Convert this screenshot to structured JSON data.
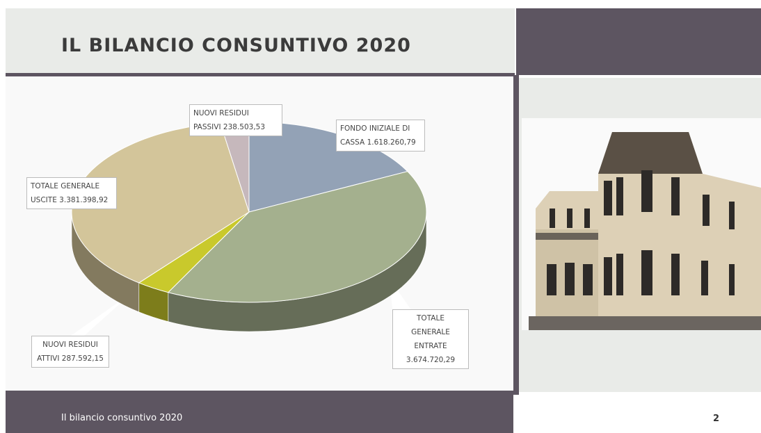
{
  "slide": {
    "title": "IL BILANCIO CONSUNTIVO 2020",
    "footer": "Il bilancio consuntivo 2020",
    "page_number": "2"
  },
  "chart_data": {
    "type": "pie",
    "categories": [
      "FONDO INIZIALE DI CASSA",
      "TOTALE GENERALE ENTRATE",
      "NUOVI RESIDUI ATTIVI",
      "TOTALE GENERALE USCITE",
      "NUOVI RESIDUI PASSIVI"
    ],
    "values": [
      1618260.79,
      3674720.29,
      287592.15,
      3381398.92,
      238503.53
    ],
    "value_labels": [
      "1.618.260,79",
      "3.674.720,29",
      "287.592,15",
      "3.381.398,92",
      "238.503,53"
    ],
    "colors": [
      "#93a2b6",
      "#a4b08e",
      "#c9c92c",
      "#d3c59a",
      "#c6b8bc"
    ]
  }
}
